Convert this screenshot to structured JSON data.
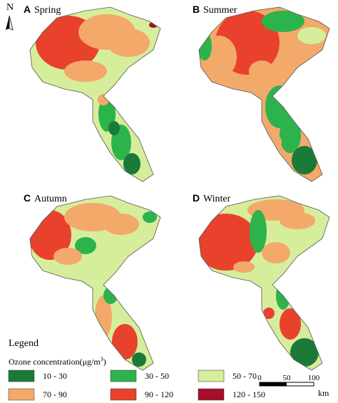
{
  "compass": "N",
  "panels": [
    {
      "letter": "A",
      "season": "Spring"
    },
    {
      "letter": "B",
      "season": "Summer"
    },
    {
      "letter": "C",
      "season": "Autumn"
    },
    {
      "letter": "D",
      "season": "Winter"
    }
  ],
  "legend": {
    "title": "Legend",
    "subtitle": {
      "text": "Ozone concentration(μg/m",
      "sup": "3",
      "end": ")"
    },
    "items": [
      {
        "label": "10 - 30",
        "color": "#1b7a38"
      },
      {
        "label": "30 - 50",
        "color": "#2db34c"
      },
      {
        "label": "50 - 70",
        "color": "#d6ed9c"
      },
      {
        "label": "70 - 90",
        "color": "#f3a96a"
      },
      {
        "label": "90 - 120",
        "color": "#e8412c"
      },
      {
        "label": "120 - 150",
        "color": "#a50f2a"
      }
    ]
  },
  "scale_bar": {
    "ticks": [
      "0",
      "50",
      "100"
    ],
    "unit": "km"
  }
}
